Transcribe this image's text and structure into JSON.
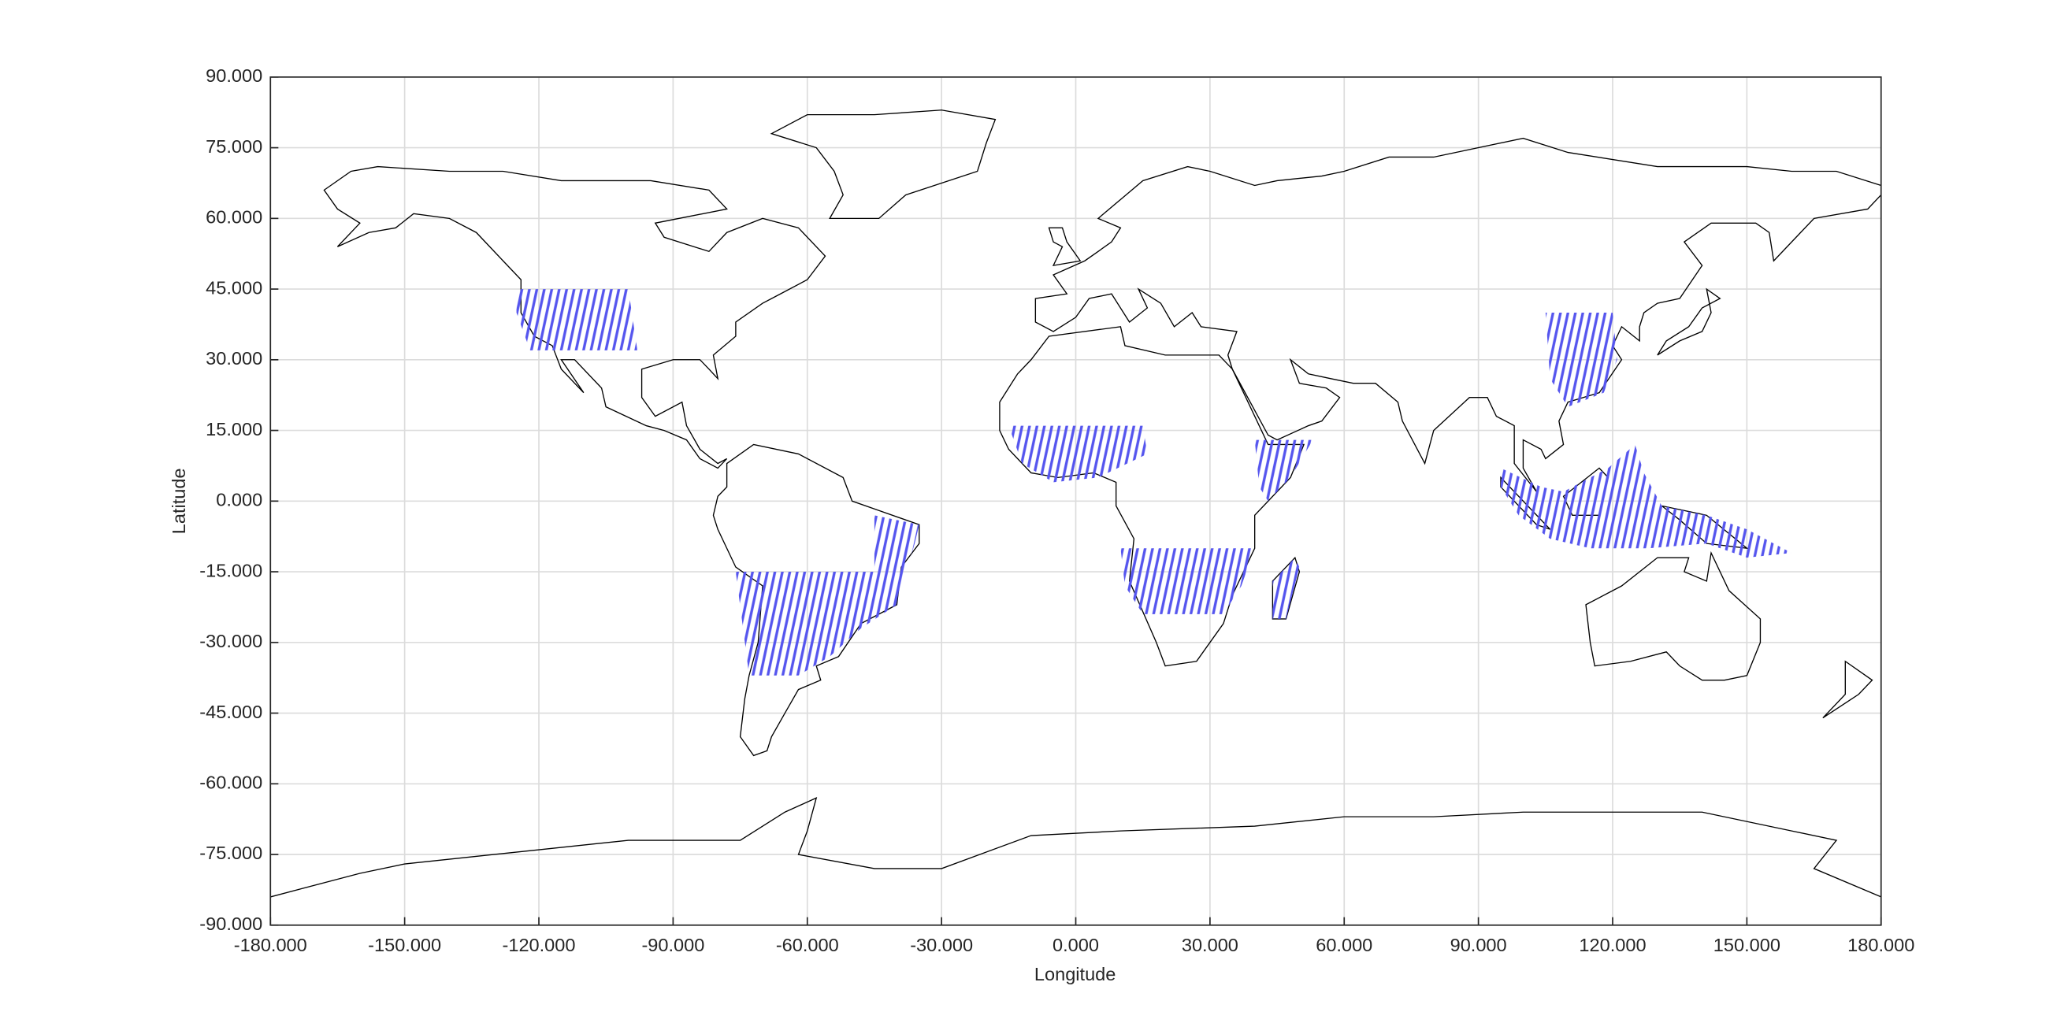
{
  "chart_data": {
    "type": "map",
    "xlabel": "Longitude",
    "ylabel": "Latitude",
    "xlim": [
      -180,
      180
    ],
    "ylim": [
      -90,
      90
    ],
    "xticks": [
      {
        "value": -180,
        "label": "-180.000"
      },
      {
        "value": -150,
        "label": "-150.000"
      },
      {
        "value": -120,
        "label": "-120.000"
      },
      {
        "value": -90,
        "label": "-90.000"
      },
      {
        "value": -60,
        "label": "-60.000"
      },
      {
        "value": -30,
        "label": "-30.000"
      },
      {
        "value": 0,
        "label": "0.000"
      },
      {
        "value": 30,
        "label": "30.000"
      },
      {
        "value": 60,
        "label": "60.000"
      },
      {
        "value": 90,
        "label": "90.000"
      },
      {
        "value": 120,
        "label": "120.000"
      },
      {
        "value": 150,
        "label": "150.000"
      },
      {
        "value": 180,
        "label": "180.000"
      }
    ],
    "yticks": [
      {
        "value": -90,
        "label": "-90.000"
      },
      {
        "value": -75,
        "label": "-75.000"
      },
      {
        "value": -60,
        "label": "-60.000"
      },
      {
        "value": -45,
        "label": "-45.000"
      },
      {
        "value": -30,
        "label": "-30.000"
      },
      {
        "value": -15,
        "label": "-15.000"
      },
      {
        "value": 0,
        "label": "0.000"
      },
      {
        "value": 15,
        "label": "15.000"
      },
      {
        "value": 30,
        "label": "30.000"
      },
      {
        "value": 45,
        "label": "45.000"
      },
      {
        "value": 60,
        "label": "60.000"
      },
      {
        "value": 75,
        "label": "75.000"
      },
      {
        "value": 90,
        "label": "90.000"
      }
    ],
    "grid": true,
    "color": "#5555ee"
  }
}
